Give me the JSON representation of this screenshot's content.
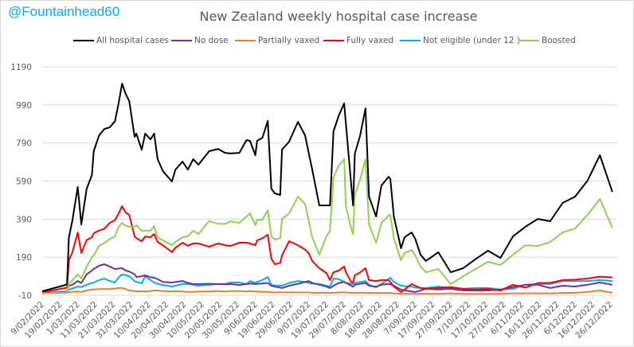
{
  "watermark": "@Fountainhead60",
  "chart_data": {
    "type": "line",
    "title": "New Zealand weekly hospital case increase",
    "xlabel": "",
    "ylabel": "",
    "ylim": [
      -10,
      1190
    ],
    "yticks": [
      "-10",
      "190",
      "390",
      "590",
      "790",
      "990",
      "1190"
    ],
    "xticks": [
      "9/02/2022",
      "19/02/2022",
      "1/03/2022",
      "11/03/2022",
      "21/03/2022",
      "31/03/2022",
      "10/04/2022",
      "20/04/2022",
      "30/04/2022",
      "10/05/2022",
      "20/05/2022",
      "30/05/2022",
      "9/06/2022",
      "19/06/2022",
      "29/06/2022",
      "9/07/2022",
      "19/07/2022",
      "29/07/2022",
      "8/08/2022",
      "18/08/2022",
      "28/08/2022",
      "7/09/2022",
      "17/09/2022",
      "27/09/2022",
      "7/10/2022",
      "17/10/2022",
      "27/10/2022",
      "6/11/2022",
      "16/11/2022",
      "26/11/2022",
      "6/12/2022",
      "16/12/2022",
      "26/12/2022"
    ],
    "grid": true,
    "legend_position": "top",
    "x": [
      "2022-02-09",
      "2022-02-22",
      "2022-02-23",
      "2022-02-24",
      "2022-02-26",
      "2022-03-01",
      "2022-03-03",
      "2022-03-06",
      "2022-03-09",
      "2022-03-10",
      "2022-03-13",
      "2022-03-16",
      "2022-03-19",
      "2022-03-22",
      "2022-03-24",
      "2022-03-26",
      "2022-03-28",
      "2022-03-30",
      "2022-04-02",
      "2022-04-03",
      "2022-04-06",
      "2022-04-08",
      "2022-04-11",
      "2022-04-13",
      "2022-04-15",
      "2022-04-18",
      "2022-04-23",
      "2022-04-25",
      "2022-04-29",
      "2022-05-02",
      "2022-05-05",
      "2022-05-08",
      "2022-05-14",
      "2022-05-19",
      "2022-05-23",
      "2022-05-26",
      "2022-05-31",
      "2022-06-04",
      "2022-06-06",
      "2022-06-09",
      "2022-06-10",
      "2022-06-13",
      "2022-06-16",
      "2022-06-18",
      "2022-06-20",
      "2022-06-23",
      "2022-06-24",
      "2022-06-28",
      "2022-07-03",
      "2022-07-07",
      "2022-07-09",
      "2022-07-11",
      "2022-07-15",
      "2022-07-19",
      "2022-07-21",
      "2022-07-23",
      "2022-07-26",
      "2022-07-29",
      "2022-07-30",
      "2022-08-02",
      "2022-08-03",
      "2022-08-04",
      "2022-08-07",
      "2022-08-10",
      "2022-08-12",
      "2022-08-16",
      "2022-08-19",
      "2022-08-23",
      "2022-08-24",
      "2022-08-26",
      "2022-08-30",
      "2022-09-01",
      "2022-09-05",
      "2022-09-07",
      "2022-09-10",
      "2022-09-13",
      "2022-09-20",
      "2022-09-27",
      "2022-10-04",
      "2022-10-11",
      "2022-10-18",
      "2022-10-25",
      "2022-11-01",
      "2022-11-08",
      "2022-11-15",
      "2022-11-22",
      "2022-11-29",
      "2022-12-06",
      "2022-12-13",
      "2022-12-20",
      "2022-12-27"
    ],
    "series": [
      {
        "name": "All hospital cases",
        "color": "#000000",
        "values": [
          11,
          44,
          50,
          295,
          383,
          559,
          362,
          550,
          621,
          747,
          830,
          864,
          872,
          905,
          998,
          1102,
          1048,
          1010,
          822,
          839,
          755,
          839,
          809,
          839,
          705,
          642,
          588,
          650,
          692,
          650,
          705,
          676,
          747,
          759,
          738,
          735,
          738,
          805,
          801,
          726,
          801,
          818,
          906,
          550,
          525,
          517,
          755,
          797,
          901,
          830,
          740,
          650,
          462,
          462,
          462,
          851,
          935,
          998,
          890,
          570,
          462,
          734,
          830,
          972,
          508,
          404,
          567,
          613,
          600,
          404,
          237,
          295,
          320,
          287,
          203,
          170,
          216,
          111,
          132,
          180,
          224,
          186,
          299,
          350,
          391,
          379,
          475,
          508,
          592,
          726,
          533
        ]
      },
      {
        "name": "No dose",
        "color": "#7030A0",
        "values": [
          2,
          8,
          10,
          40,
          45,
          65,
          55,
          100,
          120,
          128,
          145,
          153,
          141,
          128,
          130,
          132,
          120,
          115,
          100,
          86,
          90,
          95,
          85,
          82,
          75,
          60,
          57,
          60,
          65,
          55,
          49,
          49,
          50,
          49,
          47,
          49,
          44,
          49,
          52,
          49,
          50,
          52,
          55,
          40,
          35,
          30,
          28,
          40,
          50,
          60,
          65,
          55,
          45,
          35,
          28,
          40,
          55,
          60,
          55,
          40,
          35,
          45,
          50,
          55,
          40,
          35,
          45,
          50,
          48,
          40,
          20,
          15,
          10,
          7,
          15,
          24,
          20,
          24,
          15,
          15,
          15,
          20,
          33,
          45,
          45,
          28,
          40,
          36,
          45,
          57,
          45
        ]
      },
      {
        "name": "Partially vaxed",
        "color": "#ED7D31",
        "values": [
          0,
          2,
          3,
          5,
          8,
          10,
          8,
          15,
          20,
          20,
          22,
          22,
          22,
          25,
          28,
          28,
          22,
          15,
          12,
          10,
          12,
          10,
          12,
          15,
          15,
          12,
          10,
          12,
          10,
          8,
          8,
          10,
          10,
          12,
          10,
          12,
          12,
          10,
          12,
          10,
          10,
          8,
          8,
          5,
          5,
          5,
          5,
          5,
          5,
          5,
          5,
          3,
          3,
          3,
          3,
          3,
          5,
          5,
          5,
          3,
          3,
          3,
          3,
          3,
          2,
          2,
          2,
          2,
          2,
          0,
          -2,
          -3,
          -3,
          -3,
          -2,
          -2,
          -3,
          0,
          -3,
          -3,
          -3,
          -2,
          0,
          0,
          0,
          0,
          2,
          3,
          8,
          15,
          3
        ]
      },
      {
        "name": "Fully vaxed",
        "color": "#FF0000",
        "values": [
          5,
          28,
          30,
          174,
          216,
          320,
          212,
          280,
          295,
          316,
          330,
          340,
          370,
          385,
          420,
          458,
          425,
          412,
          299,
          290,
          274,
          299,
          295,
          312,
          270,
          253,
          216,
          240,
          266,
          250,
          262,
          262,
          245,
          262,
          253,
          249,
          266,
          266,
          262,
          253,
          278,
          290,
          308,
          182,
          153,
          160,
          200,
          274,
          253,
          230,
          212,
          170,
          132,
          107,
          70,
          111,
          120,
          141,
          110,
          60,
          57,
          95,
          110,
          132,
          70,
          65,
          70,
          70,
          60,
          36,
          7,
          20,
          49,
          40,
          28,
          24,
          28,
          33,
          24,
          20,
          24,
          15,
          45,
          30,
          55,
          55,
          70,
          72,
          78,
          88,
          84
        ]
      },
      {
        "name": "Not eligible (under 12 )",
        "color": "#00B0F0",
        "values": [
          0,
          5,
          8,
          20,
          25,
          36,
          33,
          45,
          55,
          57,
          70,
          78,
          65,
          57,
          85,
          99,
          95,
          90,
          65,
          60,
          53,
          90,
          70,
          57,
          50,
          44,
          36,
          40,
          49,
          49,
          45,
          40,
          45,
          49,
          50,
          57,
          57,
          49,
          65,
          55,
          60,
          70,
          86,
          44,
          42,
          40,
          40,
          55,
          65,
          60,
          55,
          52,
          49,
          40,
          36,
          78,
          75,
          60,
          55,
          50,
          49,
          55,
          60,
          65,
          45,
          32,
          50,
          75,
          82,
          60,
          40,
          38,
          35,
          30,
          28,
          28,
          36,
          28,
          24,
          28,
          28,
          20,
          24,
          45,
          49,
          49,
          65,
          65,
          65,
          70,
          65
        ]
      },
      {
        "name": "Boosted",
        "color": "#92D050",
        "values": [
          0,
          3,
          5,
          48,
          70,
          100,
          78,
          140,
          190,
          200,
          250,
          265,
          285,
          300,
          350,
          370,
          355,
          350,
          350,
          358,
          329,
          330,
          329,
          354,
          295,
          278,
          253,
          270,
          295,
          300,
          329,
          312,
          380,
          365,
          365,
          379,
          370,
          404,
          420,
          358,
          387,
          387,
          437,
          300,
          283,
          290,
          391,
          420,
          508,
          470,
          383,
          295,
          203,
          300,
          329,
          609,
          672,
          705,
          454,
          340,
          312,
          517,
          600,
          705,
          362,
          266,
          370,
          410,
          412,
          287,
          174,
          212,
          228,
          200,
          141,
          111,
          128,
          49,
          90,
          128,
          166,
          149,
          203,
          253,
          249,
          270,
          320,
          341,
          412,
          496,
          345
        ]
      }
    ]
  }
}
